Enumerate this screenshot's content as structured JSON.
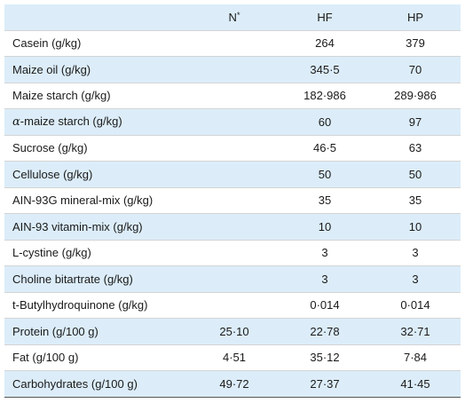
{
  "table": {
    "headers": {
      "name": "",
      "n": "N",
      "n_mark": "*",
      "hf": "HF",
      "hp": "HP"
    },
    "rows": [
      {
        "name": "Casein (g/kg)",
        "n": "",
        "hf": "264",
        "hp": "379"
      },
      {
        "name": "Maize oil (g/kg)",
        "n": "",
        "hf": "345·5",
        "hp": "70"
      },
      {
        "name": "Maize starch (g/kg)",
        "n": "",
        "hf": "182·986",
        "hp": "289·986"
      },
      {
        "name_prefix": "α",
        "name": "-maize starch (g/kg)",
        "n": "",
        "hf": "60",
        "hp": "97"
      },
      {
        "name": "Sucrose (g/kg)",
        "n": "",
        "hf": "46·5",
        "hp": "63"
      },
      {
        "name": "Cellulose (g/kg)",
        "n": "",
        "hf": "50",
        "hp": "50"
      },
      {
        "name": "AIN-93G mineral-mix (g/kg)",
        "n": "",
        "hf": "35",
        "hp": "35"
      },
      {
        "name": "AIN-93 vitamin-mix (g/kg)",
        "n": "",
        "hf": "10",
        "hp": "10"
      },
      {
        "name": "L-cystine (g/kg)",
        "n": "",
        "hf": "3",
        "hp": "3"
      },
      {
        "name": "Choline bitartrate (g/kg)",
        "n": "",
        "hf": "3",
        "hp": "3"
      },
      {
        "name": "t-Butylhydroquinone (g/kg)",
        "n": "",
        "hf": "0·014",
        "hp": "0·014"
      },
      {
        "name": "Protein (g/100 g)",
        "n": "25·10",
        "hf": "22·78",
        "hp": "32·71"
      },
      {
        "name": "Fat (g/100 g)",
        "n": "4·51",
        "hf": "35·12",
        "hp": "7·84"
      },
      {
        "name": "Carbohydrates (g/100 g)",
        "n": "49·72",
        "hf": "27·37",
        "hp": "41·45"
      }
    ]
  }
}
